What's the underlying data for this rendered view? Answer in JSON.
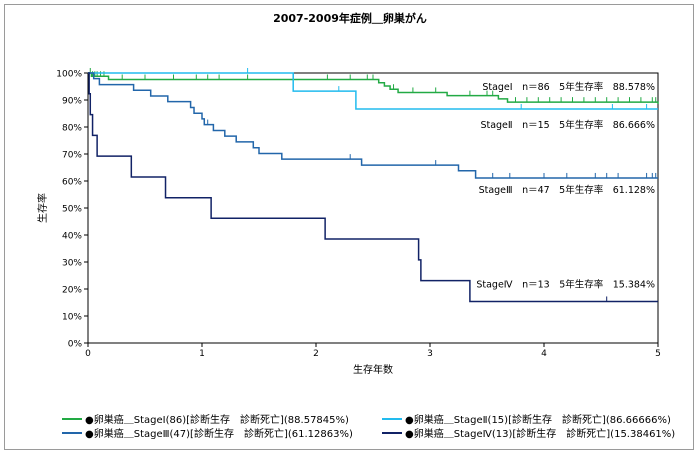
{
  "chart_data": {
    "type": "line",
    "title": "2007-2009年症例＿卵巣がん",
    "xlabel": "生存年数",
    "ylabel": "生存率",
    "xlim": [
      0,
      5
    ],
    "ylim": [
      0,
      100
    ],
    "x_ticks": [
      "0",
      "1",
      "2",
      "3",
      "4",
      "5"
    ],
    "y_ticks": [
      "0%",
      "10%",
      "20%",
      "30%",
      "40%",
      "50%",
      "60%",
      "70%",
      "80%",
      "90%",
      "100%"
    ],
    "grid": false,
    "legend_position": "bottom",
    "series": [
      {
        "name": "●卵巣癌＿StageⅠ(86)[診断生存　診断死亡](88.57845%)",
        "label": "StageⅠ　n＝86　5年生存率　88.578%",
        "color": "#22aa44",
        "points": [
          [
            0,
            100
          ],
          [
            0.03,
            98.8
          ],
          [
            0.18,
            97.6
          ],
          [
            2.55,
            96.4
          ],
          [
            2.6,
            95.2
          ],
          [
            2.65,
            94.0
          ],
          [
            2.72,
            92.8
          ],
          [
            3.15,
            91.6
          ],
          [
            3.6,
            90.4
          ],
          [
            3.68,
            89.2
          ],
          [
            5,
            88.578
          ]
        ],
        "censor_x": [
          0.02,
          0.04,
          0.06,
          0.08,
          0.11,
          0.14,
          0.3,
          0.5,
          0.75,
          0.95,
          1.05,
          1.15,
          1.4,
          1.8,
          2.1,
          2.3,
          2.45,
          2.5,
          2.68,
          2.85,
          3.05,
          3.35,
          3.5,
          3.55,
          3.75,
          3.85,
          3.95,
          4.05,
          4.15,
          4.25,
          4.35,
          4.45,
          4.55,
          4.65,
          4.75,
          4.85,
          4.95,
          4.98
        ]
      },
      {
        "name": "●卵巣癌＿StageⅡ(15)[診断生存　診断死亡](86.66666%)",
        "label": "StageⅡ　n＝15　5年生存率　86.666%",
        "color": "#22bbee",
        "points": [
          [
            0,
            100
          ],
          [
            1.8,
            93.3
          ],
          [
            2.35,
            86.666
          ],
          [
            5,
            86.666
          ]
        ],
        "censor_x": [
          1.4,
          2.2,
          3.8,
          4.6,
          4.9
        ]
      },
      {
        "name": "●卵巣癌＿StageⅢ(47)[診断生存　診断死亡](61.12863%)",
        "label": "StageⅢ　n＝47　5年生存率　61.128%",
        "color": "#2266aa",
        "points": [
          [
            0,
            100
          ],
          [
            0.05,
            97.9
          ],
          [
            0.1,
            95.7
          ],
          [
            0.4,
            93.6
          ],
          [
            0.55,
            91.5
          ],
          [
            0.7,
            89.4
          ],
          [
            0.9,
            87.2
          ],
          [
            0.93,
            85.1
          ],
          [
            1.0,
            83.0
          ],
          [
            1.02,
            80.9
          ],
          [
            1.1,
            78.7
          ],
          [
            1.2,
            76.6
          ],
          [
            1.3,
            74.5
          ],
          [
            1.45,
            72.3
          ],
          [
            1.5,
            70.2
          ],
          [
            1.7,
            68.1
          ],
          [
            2.4,
            65.9
          ],
          [
            3.25,
            63.8
          ],
          [
            3.4,
            61.128
          ],
          [
            5,
            61.128
          ]
        ],
        "censor_x": [
          1.05,
          1.3,
          2.3,
          3.05,
          3.55,
          3.7,
          4.0,
          4.2,
          4.45,
          4.55,
          4.65,
          4.9,
          4.95,
          4.98
        ]
      },
      {
        "name": "●卵巣癌＿StageⅣ(13)[診断生存　診断死亡](15.38461%)",
        "label": "StageⅣ　n＝13　5年生存率　15.384%",
        "color": "#112266",
        "points": [
          [
            0,
            100
          ],
          [
            0.01,
            92.3
          ],
          [
            0.02,
            84.6
          ],
          [
            0.04,
            76.9
          ],
          [
            0.08,
            69.2
          ],
          [
            0.38,
            61.5
          ],
          [
            0.68,
            53.8
          ],
          [
            1.08,
            46.2
          ],
          [
            2.08,
            38.5
          ],
          [
            2.9,
            30.8
          ],
          [
            2.92,
            23.1
          ],
          [
            3.35,
            15.384
          ],
          [
            5,
            15.384
          ]
        ],
        "censor_x": [
          4.55
        ]
      }
    ]
  }
}
